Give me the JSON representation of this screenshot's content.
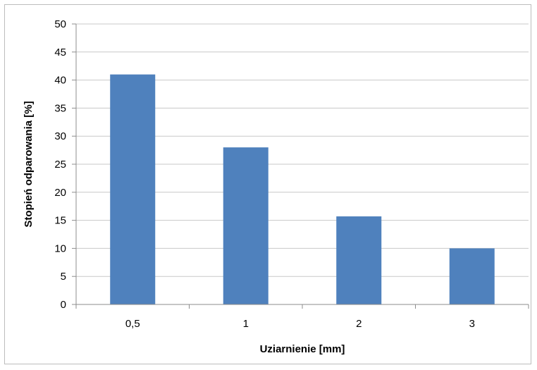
{
  "chart_data": {
    "type": "bar",
    "title": "",
    "xlabel": "Uziarnienie [mm]",
    "ylabel": "Stopień odparowania [%]",
    "categories": [
      "0,5",
      "1",
      "2",
      "3"
    ],
    "values": [
      41,
      28,
      15.7,
      10
    ],
    "ylim": [
      0,
      50
    ],
    "yticks": [
      "0",
      "5",
      "10",
      "15",
      "20",
      "25",
      "30",
      "35",
      "40",
      "45",
      "50"
    ],
    "grid": true,
    "legend": "none",
    "colors": {
      "bar": "#4f81bd",
      "grid": "#c8c8c8",
      "axis": "#8c8c8c"
    }
  }
}
